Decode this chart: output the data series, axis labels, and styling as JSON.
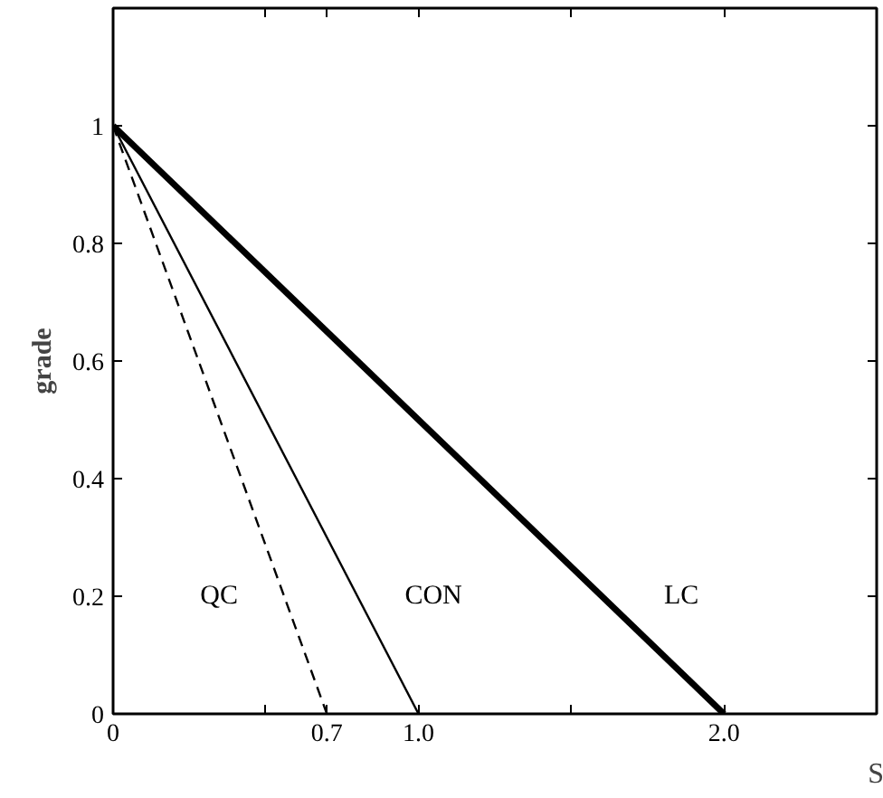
{
  "chart_data": {
    "type": "line",
    "xlabel": "S",
    "ylabel": "grade",
    "xlim": [
      0,
      2.5
    ],
    "ylim": [
      0,
      1.2
    ],
    "xticks": [
      0,
      {
        "value": 0.5,
        "label": null
      },
      0.7,
      {
        "value": 1.0,
        "label": "1.0"
      },
      {
        "value": 1.5,
        "label": null
      },
      {
        "value": 2.0,
        "label": "2.0"
      }
    ],
    "yticks": [
      0,
      0.2,
      0.4,
      0.6,
      0.8,
      1
    ],
    "grid": false,
    "legend": false,
    "marker": "none",
    "series": [
      {
        "name": "QC",
        "color": "#000000",
        "x": [
          0,
          0.7
        ],
        "values": [
          1,
          0
        ],
        "line_style": "dashed"
      },
      {
        "name": "CON",
        "color": "#000000",
        "x": [
          0,
          1.0
        ],
        "values": [
          1,
          0
        ],
        "line_style": "solid"
      },
      {
        "name": "LC",
        "color": "#000000",
        "x": [
          0,
          2.0
        ],
        "values": [
          1,
          0
        ],
        "line_style": "solid"
      }
    ]
  }
}
